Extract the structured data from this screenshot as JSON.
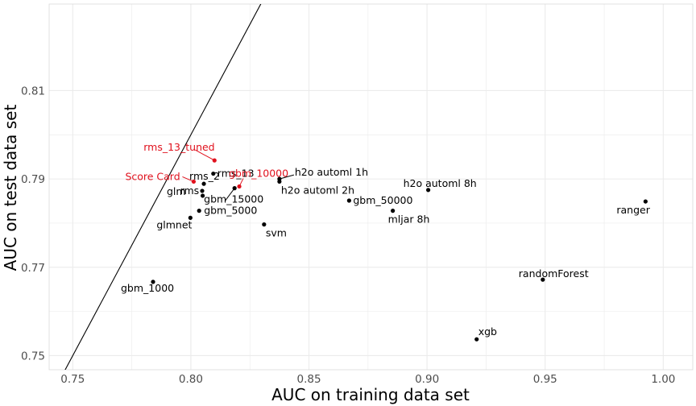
{
  "chart_data": {
    "type": "scatter",
    "title": "",
    "xlabel": "AUC on training data set",
    "ylabel": "AUC on test data set",
    "xlim": [
      0.74,
      1.0125
    ],
    "ylim": [
      0.7468,
      0.8296
    ],
    "x_ticks": [
      0.75,
      0.8,
      0.85,
      0.9,
      0.95,
      1.0
    ],
    "x_tick_labels": [
      "0.75",
      "0.80",
      "0.85",
      "0.90",
      "0.95",
      "1.00"
    ],
    "y_ticks": [
      0.75,
      0.77,
      0.79,
      0.81
    ],
    "y_tick_labels": [
      "0.75",
      "0.77",
      "0.79",
      "0.81"
    ],
    "grid": true,
    "reference_line": {
      "description": "y = x",
      "slope": 1,
      "intercept": 0
    },
    "colors": {
      "highlight": "#e0101c",
      "default": "#000000",
      "grid": "#ebebeb"
    },
    "points": [
      {
        "label": "gbm_1000",
        "x": 0.784,
        "y": 0.7667,
        "highlight": false
      },
      {
        "label": "glmnet",
        "x": 0.7998,
        "y": 0.7812,
        "highlight": false
      },
      {
        "label": "gbm_5000",
        "x": 0.8035,
        "y": 0.7828,
        "highlight": false
      },
      {
        "label": "rms",
        "x": 0.805,
        "y": 0.7862,
        "highlight": false
      },
      {
        "label": "glm",
        "x": 0.8048,
        "y": 0.7873,
        "highlight": false
      },
      {
        "label": "Score Card",
        "x": 0.8012,
        "y": 0.7894,
        "highlight": true
      },
      {
        "label": "rms_2",
        "x": 0.8055,
        "y": 0.7889,
        "highlight": false
      },
      {
        "label": "rms_13",
        "x": 0.8095,
        "y": 0.7912,
        "highlight": false
      },
      {
        "label": "rms_13_tuned",
        "x": 0.81,
        "y": 0.7942,
        "highlight": true
      },
      {
        "label": "gbm_15000",
        "x": 0.8185,
        "y": 0.7879,
        "highlight": false
      },
      {
        "label": "gbm_10000",
        "x": 0.8205,
        "y": 0.7883,
        "highlight": true
      },
      {
        "label": "h2o automl 1h",
        "x": 0.8375,
        "y": 0.79,
        "highlight": false
      },
      {
        "label": "h2o automl 2h",
        "x": 0.8375,
        "y": 0.7894,
        "highlight": false
      },
      {
        "label": "svm",
        "x": 0.831,
        "y": 0.7797,
        "highlight": false
      },
      {
        "label": "gbm_50000",
        "x": 0.867,
        "y": 0.7851,
        "highlight": false
      },
      {
        "label": "mljar 8h",
        "x": 0.8855,
        "y": 0.7828,
        "highlight": false
      },
      {
        "label": "h2o automl 8h",
        "x": 0.9005,
        "y": 0.7875,
        "highlight": false
      },
      {
        "label": "randomForest",
        "x": 0.949,
        "y": 0.7672,
        "highlight": false
      },
      {
        "label": "xgb",
        "x": 0.921,
        "y": 0.7537,
        "highlight": false
      },
      {
        "label": "ranger",
        "x": 0.9925,
        "y": 0.7849,
        "highlight": false
      }
    ]
  }
}
